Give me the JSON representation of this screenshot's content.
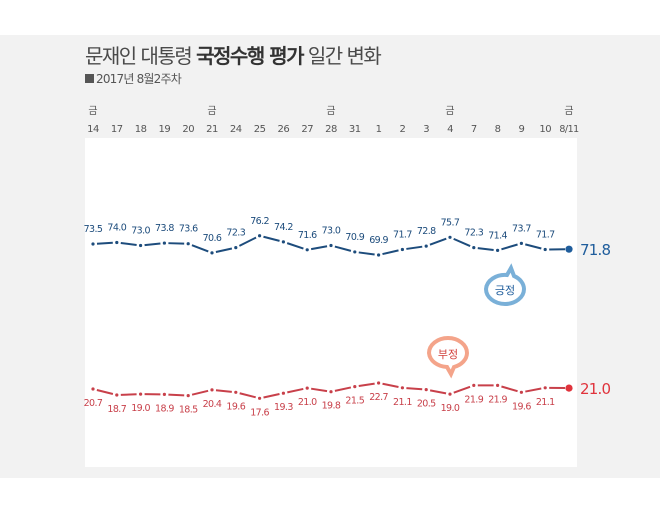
{
  "title": {
    "normal_prefix": "문재인 대통령 ",
    "bold_part": "국정수행 평가",
    "normal_suffix": " 일간 변화"
  },
  "subtitle": "2017년 8월2주차",
  "colors": {
    "positive_line": "#1d4c7c",
    "positive_last": "#1f5d9c",
    "positive_bubble": "#7ab0d8",
    "positive_bubble_text": "#1f5d9c",
    "negative_line": "#c8404a",
    "negative_last": "#e0333c",
    "negative_bubble": "#f4a48a",
    "negative_bubble_text": "#d2403c",
    "background": "#f2f2f2",
    "panel": "#ffffff"
  },
  "chart_data": {
    "type": "line",
    "title": "문재인 대통령 국정수행 평가 일간 변화",
    "subtitle": "2017년 8월2주차",
    "xlabel": "",
    "ylabel": "",
    "categories": [
      "14",
      "17",
      "18",
      "19",
      "20",
      "21",
      "24",
      "25",
      "26",
      "27",
      "28",
      "31",
      "1",
      "2",
      "3",
      "4",
      "7",
      "8",
      "9",
      "10",
      "8/11"
    ],
    "weekday_marks": [
      {
        "index": 0,
        "label": "금"
      },
      {
        "index": 5,
        "label": "금"
      },
      {
        "index": 10,
        "label": "금"
      },
      {
        "index": 15,
        "label": "금"
      },
      {
        "index": 20,
        "label": "금"
      }
    ],
    "series": [
      {
        "name": "긍정",
        "values": [
          73.5,
          74.0,
          73.0,
          73.8,
          73.6,
          70.6,
          72.3,
          76.2,
          74.2,
          71.6,
          73.0,
          70.9,
          69.9,
          71.7,
          72.8,
          75.7,
          72.3,
          71.4,
          73.7,
          71.7,
          71.8
        ],
        "labels": [
          "73.5",
          "74.0",
          "73.0",
          "73.8",
          "73.6",
          "70.6",
          "72.3",
          "76.2",
          "74.2",
          "71.6",
          "73.0",
          "70.9",
          "69.9",
          "71.7",
          "72.8",
          "75.7",
          "72.3",
          "71.4",
          "73.7",
          "71.7",
          "71.8"
        ]
      },
      {
        "name": "부정",
        "values": [
          20.7,
          18.7,
          19.0,
          18.9,
          18.5,
          20.4,
          19.6,
          17.6,
          19.3,
          21.0,
          19.8,
          21.5,
          22.7,
          21.1,
          20.5,
          19.0,
          21.9,
          21.9,
          19.6,
          21.1,
          21.0
        ],
        "labels": [
          "20.7",
          "18.7",
          "19.0",
          "18.9",
          "18.5",
          "20.4",
          "19.6",
          "17.6",
          "19.3",
          "21.0",
          "19.8",
          "21.5",
          "22.7",
          "21.1",
          "20.5",
          "19.0",
          "21.9",
          "21.9",
          "19.6",
          "21.1",
          "21.0"
        ]
      }
    ],
    "grid": false,
    "legend": "bubble labels near lines"
  },
  "legend": {
    "positive": "긍정",
    "negative": "부정"
  }
}
